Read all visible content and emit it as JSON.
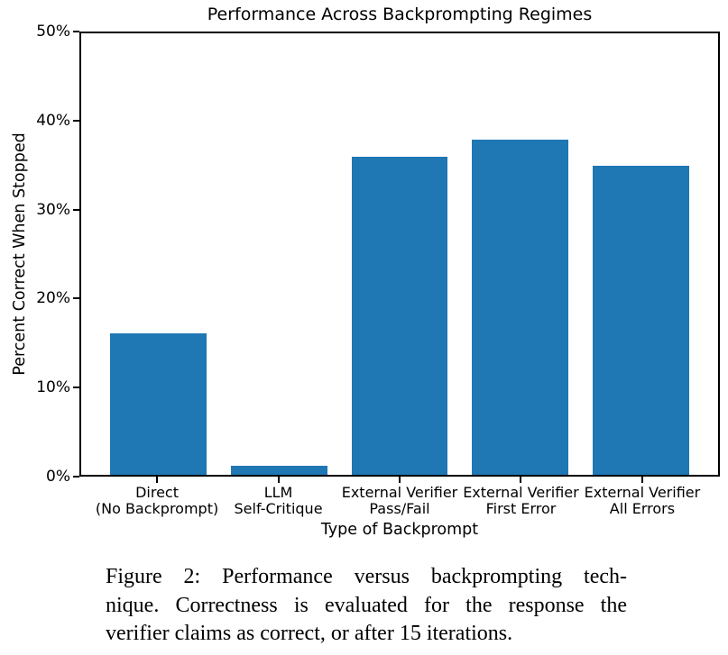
{
  "figure": {
    "caption_lines": [
      "Figure 2: Performance versus backprompting tech-",
      "nique. Correctness is evaluated for the response the",
      "verifier claims as correct, or after 15 iterations."
    ]
  },
  "chart_data": {
    "type": "bar",
    "title": "Performance Across Backprompting Regimes",
    "xlabel": "Type of Backprompt",
    "ylabel": "Percent Correct When Stopped",
    "categories": [
      "Direct\n(No Backprompt)",
      "LLM\nSelf-Critique",
      "External Verifier\nPass/Fail",
      "External Verifier\nFirst Error",
      "External Verifier\nAll Errors"
    ],
    "values": [
      16,
      1,
      36,
      38,
      35
    ],
    "ylim": [
      0,
      50
    ],
    "yticks": [
      0,
      10,
      20,
      30,
      40,
      50
    ],
    "ytick_labels": [
      "0%",
      "10%",
      "20%",
      "30%",
      "40%",
      "50%"
    ],
    "bar_color": "#1f77b4",
    "axis_color": "#000000",
    "bar_width_fraction": 0.8,
    "x_margin_fraction": 0.05,
    "grid": false,
    "legend": "none"
  }
}
